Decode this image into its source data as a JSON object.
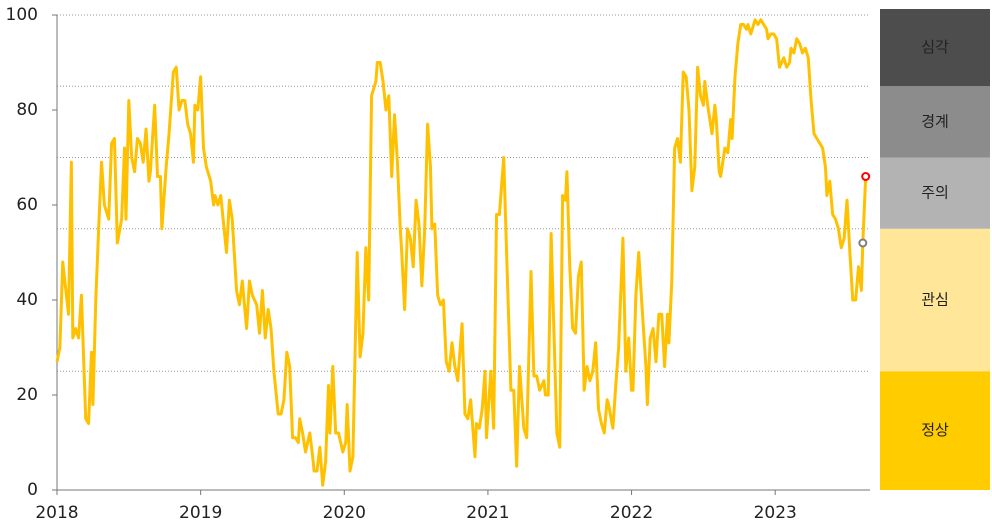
{
  "chart_data": {
    "type": "line",
    "xlim": [
      2018,
      2023.66
    ],
    "xticks": [
      2018,
      2019,
      2020,
      2021,
      2022,
      2023
    ],
    "ylim": [
      0,
      100
    ],
    "yticks": [
      0,
      20,
      40,
      60,
      80,
      100
    ],
    "grid": true,
    "bands": [
      {
        "label": "정상",
        "from": 0,
        "to": 25,
        "color": "#ffcc00",
        "text_color": "#333333"
      },
      {
        "label": "관심",
        "from": 25,
        "to": 55,
        "color": "#ffe699",
        "text_color": "#333333"
      },
      {
        "label": "주의",
        "from": 55,
        "to": 70,
        "color": "#b3b3b3",
        "text_color": "#333333"
      },
      {
        "label": "경계",
        "from": 70,
        "to": 85,
        "color": "#8c8c8c",
        "text_color": "#ffffff"
      },
      {
        "label": "심각",
        "from": 85,
        "to": 100,
        "color": "#4d4d4d",
        "text_color": "#ffffff"
      }
    ],
    "series": [
      {
        "color": "#ffc000",
        "x": [
          2018.0,
          2018.02,
          2018.04,
          2018.08,
          2018.1,
          2018.11,
          2018.13,
          2018.15,
          2018.17,
          2018.2,
          2018.22,
          2018.24,
          2018.25,
          2018.27,
          2018.29,
          2018.31,
          2018.33,
          2018.36,
          2018.38,
          2018.4,
          2018.42,
          2018.45,
          2018.47,
          2018.48,
          2018.5,
          2018.52,
          2018.54,
          2018.56,
          2018.58,
          2018.6,
          2018.62,
          2018.64,
          2018.65,
          2018.68,
          2018.7,
          2018.72,
          2018.73,
          2018.76,
          2018.78,
          2018.81,
          2018.83,
          2018.85,
          2018.87,
          2018.89,
          2018.91,
          2018.93,
          2018.95,
          2018.96,
          2018.98,
          2019.0,
          2019.02,
          2019.04,
          2019.07,
          2019.09,
          2019.1,
          2019.12,
          2019.14,
          2019.18,
          2019.2,
          2019.22,
          2019.25,
          2019.27,
          2019.29,
          2019.32,
          2019.34,
          2019.36,
          2019.39,
          2019.41,
          2019.43,
          2019.45,
          2019.47,
          2019.49,
          2019.51,
          2019.54,
          2019.56,
          2019.58,
          2019.6,
          2019.62,
          2019.64,
          2019.66,
          2019.68,
          2019.69,
          2019.71,
          2019.73,
          2019.76,
          2019.78,
          2019.79,
          2019.81,
          2019.83,
          2019.85,
          2019.87,
          2019.89,
          2019.9,
          2019.92,
          2019.94,
          2019.96,
          2019.99,
          2020.01,
          2020.02,
          2020.04,
          2020.06,
          2020.09,
          2020.11,
          2020.13,
          2020.15,
          2020.17,
          2020.19,
          2020.22,
          2020.23,
          2020.25,
          2020.27,
          2020.29,
          2020.31,
          2020.33,
          2020.35,
          2020.37,
          2020.39,
          2020.4,
          2020.42,
          2020.44,
          2020.46,
          2020.48,
          2020.5,
          2020.52,
          2020.54,
          2020.56,
          2020.58,
          2020.6,
          2020.61,
          2020.63,
          2020.65,
          2020.67,
          2020.69,
          2020.71,
          2020.73,
          2020.75,
          2020.77,
          2020.79,
          2020.82,
          2020.84,
          2020.86,
          2020.88,
          2020.91,
          2020.92,
          2020.94,
          2020.96,
          2020.98,
          2020.99,
          2021.02,
          2021.04,
          2021.06,
          2021.08,
          2021.11,
          2021.13,
          2021.16,
          2021.18,
          2021.2,
          2021.22,
          2021.25,
          2021.27,
          2021.3,
          2021.32,
          2021.34,
          2021.36,
          2021.39,
          2021.4,
          2021.42,
          2021.44,
          2021.48,
          2021.5,
          2021.52,
          2021.54,
          2021.55,
          2021.57,
          2021.59,
          2021.61,
          2021.63,
          2021.65,
          2021.67,
          2021.69,
          2021.71,
          2021.73,
          2021.75,
          2021.77,
          2021.79,
          2021.81,
          2021.83,
          2021.84,
          2021.87,
          2021.89,
          2021.91,
          2021.94,
          2021.96,
          2021.98,
          2022.0,
          2022.01,
          2022.03,
          2022.05,
          2022.07,
          2022.1,
          2022.11,
          2022.13,
          2022.15,
          2022.17,
          2022.19,
          2022.21,
          2022.23,
          2022.25,
          2022.26,
          2022.28,
          2022.3,
          2022.32,
          2022.34,
          2022.36,
          2022.38,
          2022.4,
          2022.42,
          2022.44,
          2022.46,
          2022.48,
          2022.5,
          2022.51,
          2022.53,
          2022.56,
          2022.58,
          2022.59,
          2022.61,
          2022.62,
          2022.65,
          2022.67,
          2022.69,
          2022.7,
          2022.72,
          2022.74,
          2022.76,
          2022.78,
          2022.8,
          2022.81,
          2022.83,
          2022.86,
          2022.88,
          2022.9,
          2022.92,
          2022.94,
          2022.95,
          2022.97,
          2022.99,
          2023.01,
          2023.03,
          2023.06,
          2023.08,
          2023.1,
          2023.11,
          2023.13,
          2023.15,
          2023.17,
          2023.19,
          2023.21,
          2023.23,
          2023.25,
          2023.27,
          2023.29,
          2023.31,
          2023.33,
          2023.35,
          2023.36,
          2023.38,
          2023.4,
          2023.42,
          2023.44,
          2023.46,
          2023.48,
          2023.5,
          2023.52,
          2023.54,
          2023.56,
          2023.58,
          2023.6,
          2023.61,
          2023.63
        ],
        "values": [
          27,
          30,
          48,
          37,
          69,
          32,
          34,
          32,
          41,
          15,
          14,
          29,
          18,
          40,
          55,
          69,
          60,
          57,
          73,
          74,
          52,
          57,
          72,
          57,
          82,
          70,
          67,
          74,
          73,
          69,
          76,
          65,
          67,
          81,
          66,
          66,
          55,
          68,
          75,
          88,
          89,
          80,
          82,
          82,
          77,
          75,
          69,
          81,
          80,
          87,
          72,
          68,
          65,
          60,
          62,
          60,
          62,
          50,
          61,
          57,
          42,
          39,
          44,
          34,
          44,
          41,
          39,
          33,
          42,
          32,
          38,
          34,
          25,
          16,
          16,
          19,
          29,
          26,
          11,
          11,
          10,
          15,
          12,
          8,
          12,
          7,
          4,
          4,
          9,
          1,
          6,
          22,
          12,
          26,
          12,
          12,
          8,
          10,
          18,
          4,
          7,
          50,
          28,
          33,
          51,
          40,
          83,
          86,
          90,
          90,
          86,
          80,
          83,
          66,
          79,
          69,
          55,
          50,
          38,
          55,
          53,
          47,
          61,
          56,
          43,
          55,
          77,
          68,
          55,
          56,
          41,
          39,
          40,
          27,
          25,
          31,
          26,
          23,
          35,
          16,
          15,
          19,
          7,
          14,
          13,
          17,
          25,
          11,
          25,
          13,
          58,
          58,
          70,
          50,
          21,
          21,
          5,
          26,
          13,
          11,
          46,
          24,
          24,
          21,
          23,
          20,
          20,
          54,
          12,
          9,
          62,
          61,
          67,
          47,
          34,
          33,
          45,
          48,
          21,
          26,
          23,
          25,
          31,
          17,
          14,
          12,
          19,
          18,
          13,
          22,
          30,
          53,
          25,
          32,
          21,
          21,
          41,
          50,
          40,
          26,
          18,
          32,
          34,
          27,
          37,
          37,
          26,
          37,
          31,
          44,
          72,
          74,
          69,
          88,
          87,
          80,
          63,
          68,
          89,
          83,
          81,
          86,
          81,
          75,
          81,
          78,
          67,
          66,
          72,
          71,
          78,
          74,
          87,
          94,
          98,
          98,
          97,
          98,
          96,
          99,
          98,
          99,
          98,
          97,
          95,
          96,
          96,
          95,
          89,
          91,
          89,
          90,
          93,
          92,
          95,
          94,
          92,
          93,
          91,
          82,
          75,
          74,
          73,
          72,
          68,
          62,
          65,
          58,
          57,
          55,
          51,
          53,
          61,
          50,
          40,
          40,
          47,
          42,
          52,
          66
        ]
      },
      {
        "type": "scatter",
        "color": "#7f7f7f",
        "x": [
          2023.61
        ],
        "values": [
          52
        ]
      },
      {
        "type": "scatter",
        "color": "#ff0000",
        "x": [
          2023.63
        ],
        "values": [
          66
        ]
      }
    ]
  }
}
